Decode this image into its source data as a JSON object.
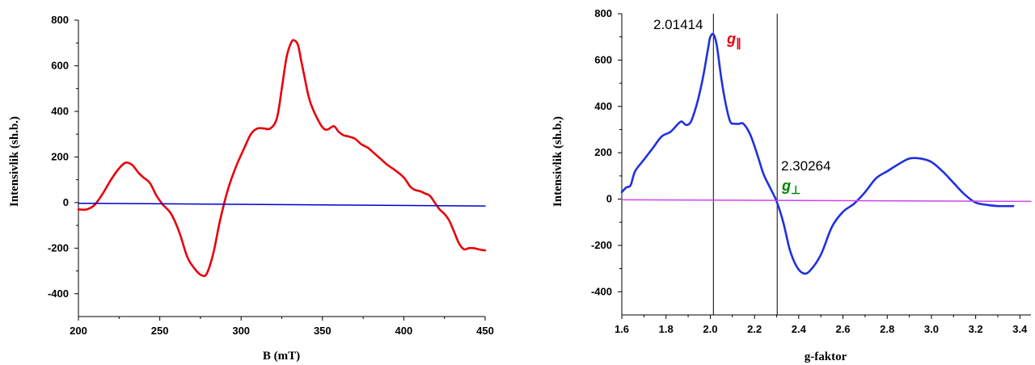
{
  "chart_data": [
    {
      "type": "line",
      "xlabel": "B (mT)",
      "ylabel": "Intensivlik (sh.b.)",
      "xlim": [
        200,
        450
      ],
      "ylim": [
        -500,
        800
      ],
      "xticks": [
        200,
        250,
        300,
        350,
        400,
        450
      ],
      "yticks": [
        -400,
        -200,
        0,
        200,
        400,
        600,
        800
      ],
      "grid": false,
      "series": [
        {
          "color": "#e8000b",
          "x": [
            200,
            205,
            210,
            215,
            220,
            225,
            229,
            233,
            237,
            240,
            244,
            248,
            252,
            257,
            262,
            267,
            272,
            276,
            279,
            283,
            287,
            292,
            297,
            302,
            306,
            310,
            314,
            318,
            322,
            325,
            328,
            331,
            333,
            335,
            337,
            339,
            341,
            343,
            346,
            350,
            353,
            357,
            360,
            363,
            366,
            370,
            374,
            378,
            382,
            386,
            390,
            395,
            400,
            404,
            407,
            410,
            413,
            416,
            419,
            422,
            425,
            428,
            431,
            434,
            437,
            440,
            443,
            446,
            450
          ],
          "y": [
            -30,
            -30,
            -10,
            40,
            100,
            150,
            175,
            165,
            130,
            110,
            85,
            30,
            -10,
            -50,
            -130,
            -240,
            -295,
            -320,
            -310,
            -220,
            -80,
            60,
            160,
            240,
            300,
            325,
            325,
            325,
            370,
            500,
            640,
            705,
            710,
            690,
            620,
            550,
            480,
            430,
            380,
            330,
            320,
            335,
            310,
            295,
            290,
            280,
            255,
            240,
            215,
            190,
            165,
            140,
            110,
            70,
            55,
            50,
            40,
            30,
            0,
            -30,
            -50,
            -80,
            -130,
            -180,
            -205,
            -200,
            -200,
            -205,
            -210
          ]
        },
        {
          "color": "#0000cd",
          "x": [
            200,
            450
          ],
          "y": [
            -3,
            -15
          ]
        }
      ]
    },
    {
      "type": "line",
      "xlabel": "g-faktor",
      "ylabel": "Intensivlik (sh.b.)",
      "xlim": [
        1.6,
        3.45
      ],
      "ylim": [
        -500,
        800
      ],
      "xticks": [
        1.6,
        1.8,
        2.0,
        2.2,
        2.4,
        2.6,
        2.8,
        3.0,
        3.2,
        3.4
      ],
      "yticks": [
        -400,
        -200,
        0,
        200,
        400,
        600,
        800
      ],
      "grid": false,
      "series": [
        {
          "color": "#2030e0",
          "x": [
            1.6,
            1.62,
            1.64,
            1.66,
            1.7,
            1.74,
            1.78,
            1.82,
            1.85,
            1.87,
            1.89,
            1.91,
            1.93,
            1.95,
            1.97,
            1.99,
            2.0,
            2.015,
            2.03,
            2.05,
            2.07,
            2.09,
            2.11,
            2.13,
            2.15,
            2.18,
            2.21,
            2.24,
            2.27,
            2.3,
            2.33,
            2.36,
            2.39,
            2.42,
            2.45,
            2.5,
            2.55,
            2.6,
            2.65,
            2.7,
            2.75,
            2.8,
            2.85,
            2.9,
            2.95,
            3.0,
            3.05,
            3.1,
            3.15,
            3.2,
            3.25,
            3.3,
            3.37
          ],
          "y": [
            30,
            50,
            60,
            120,
            170,
            220,
            270,
            290,
            320,
            335,
            320,
            330,
            380,
            450,
            540,
            650,
            700,
            710,
            660,
            520,
            410,
            335,
            325,
            325,
            325,
            280,
            200,
            110,
            50,
            -10,
            -100,
            -220,
            -290,
            -320,
            -310,
            -240,
            -120,
            -55,
            -20,
            30,
            90,
            120,
            150,
            175,
            175,
            160,
            120,
            70,
            20,
            -15,
            -25,
            -30,
            -30
          ]
        },
        {
          "color": "#cc44ee",
          "x": [
            1.6,
            3.45
          ],
          "y": [
            -3,
            -10
          ]
        }
      ],
      "vlines": [
        2.01414,
        2.30264
      ],
      "annotations": {
        "g1_value": "2.01414",
        "g1_symbol": "g",
        "g1_subscript": "∥",
        "g1_color": "#e8000b",
        "g2_value": "2.30264",
        "g2_symbol": "g",
        "g2_subscript": "⊥",
        "g2_color": "#008000"
      }
    }
  ]
}
